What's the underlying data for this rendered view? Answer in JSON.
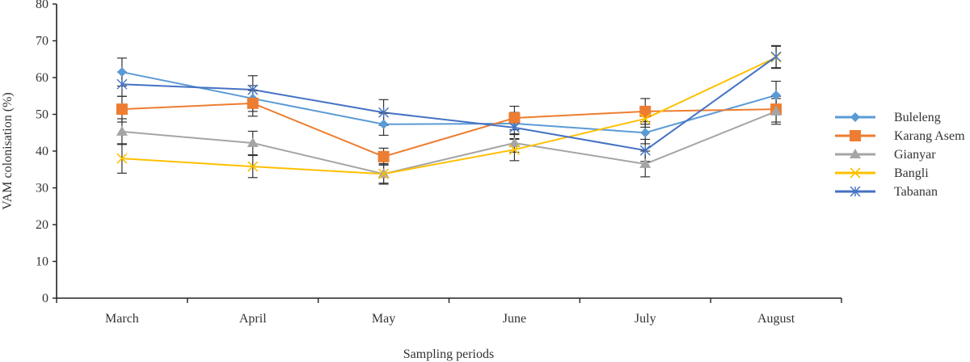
{
  "chart_data": {
    "type": "line",
    "title": "",
    "xlabel": "Sampling periods",
    "ylabel": "VAM colonisation (%)",
    "ylim": [
      0,
      80
    ],
    "yticks": [
      0,
      10,
      20,
      30,
      40,
      50,
      60,
      70,
      80
    ],
    "grid": false,
    "legend_position": "right",
    "error_bars": true,
    "categories": [
      "March",
      "April",
      "May",
      "June",
      "July",
      "August"
    ],
    "series": [
      {
        "name": "Buleleng",
        "color": "#5B9BD5",
        "marker": "diamond",
        "values": [
          61.5,
          54.3,
          47.3,
          47.5,
          45.0,
          55.2
        ],
        "errors": [
          3.8,
          3.5,
          3.0,
          3.0,
          3.0,
          3.8
        ]
      },
      {
        "name": "Karang Asem",
        "color": "#ED7D31",
        "marker": "square",
        "values": [
          51.4,
          53.0,
          38.5,
          49.0,
          50.8,
          51.4
        ],
        "errors": [
          3.5,
          3.5,
          2.3,
          3.2,
          3.5,
          3.5
        ]
      },
      {
        "name": "Gianyar",
        "color": "#A5A5A5",
        "marker": "triangle",
        "values": [
          45.3,
          42.2,
          33.8,
          42.2,
          36.5,
          50.8
        ],
        "errors": [
          3.5,
          3.2,
          2.5,
          2.5,
          3.5,
          3.5
        ]
      },
      {
        "name": "Bangli",
        "color": "#FFC000",
        "marker": "x",
        "values": [
          38.0,
          35.8,
          33.8,
          40.4,
          48.8,
          65.5
        ],
        "errors": [
          4.0,
          3.0,
          2.8,
          3.0,
          2.3,
          3.0
        ]
      },
      {
        "name": "Tabanan",
        "color": "#4472C4",
        "marker": "asterisk",
        "values": [
          58.2,
          56.7,
          50.5,
          46.4,
          40.2,
          65.7
        ],
        "errors": [
          3.3,
          3.8,
          3.5,
          3.2,
          3.0,
          3.0
        ]
      }
    ]
  }
}
